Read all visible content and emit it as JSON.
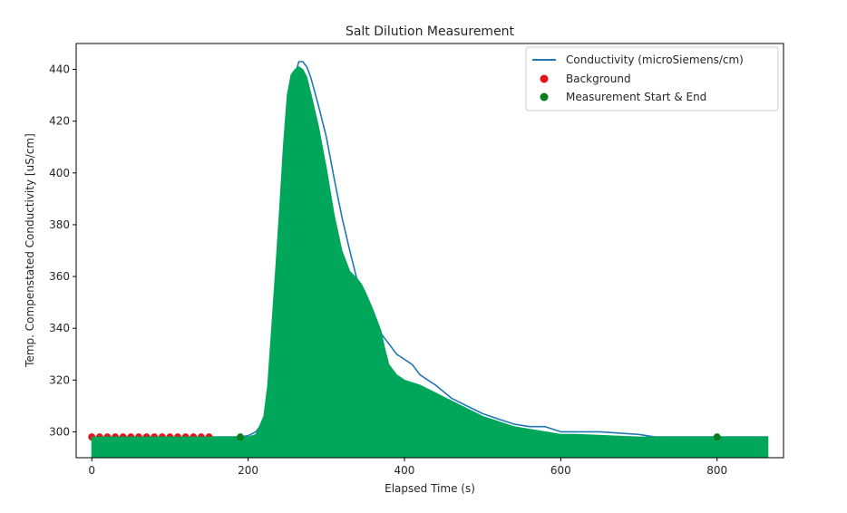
{
  "chart_data": {
    "type": "line",
    "title": "Salt Dilution Measurement",
    "xlabel": "Elapsed Time (s)",
    "ylabel": "Temp. Compenstated Conductivity [uS/cm]",
    "xlim": [
      -20,
      885
    ],
    "ylim": [
      290,
      450
    ],
    "xticks": [
      0,
      200,
      400,
      600,
      800
    ],
    "yticks": [
      300,
      320,
      340,
      360,
      380,
      400,
      420,
      440
    ],
    "legend_position": "top-right",
    "colors": {
      "conductivity": "#1f77b4",
      "background": "#e6131c",
      "measurement": "#0a7d1c",
      "fill": "#00a65a"
    },
    "legend": [
      {
        "label": "Conductivity (microSiemens/cm)",
        "kind": "line",
        "color_key": "conductivity"
      },
      {
        "label": "Background",
        "kind": "dot",
        "color_key": "background"
      },
      {
        "label": "Measurement Start & End",
        "kind": "dot",
        "color_key": "measurement"
      }
    ],
    "series": [
      {
        "name": "Conductivity (microSiemens/cm)",
        "kind": "line",
        "x": [
          0,
          150,
          190,
          200,
          210,
          220,
          230,
          240,
          250,
          255,
          260,
          265,
          270,
          275,
          280,
          290,
          300,
          310,
          320,
          330,
          340,
          350,
          360,
          370,
          380,
          390,
          400,
          410,
          420,
          430,
          440,
          460,
          480,
          500,
          520,
          540,
          560,
          580,
          600,
          620,
          650,
          700,
          720,
          760,
          800,
          865
        ],
        "y": [
          298,
          298,
          298,
          298.5,
          300,
          304,
          315,
          345,
          390,
          420,
          438,
          443,
          443,
          441,
          437,
          426,
          414,
          398,
          383,
          370,
          358,
          349,
          343,
          338,
          334,
          330,
          328,
          326,
          322,
          320,
          318,
          313,
          310,
          307,
          305,
          303,
          302,
          302,
          300,
          300,
          300,
          299,
          298,
          298,
          298,
          298
        ]
      },
      {
        "name": "Background",
        "kind": "dots",
        "x": [
          0,
          10,
          20,
          30,
          40,
          50,
          60,
          70,
          80,
          90,
          100,
          110,
          120,
          130,
          140,
          150
        ],
        "y": [
          298,
          298,
          298,
          298,
          298,
          298,
          298,
          298,
          298,
          298,
          298,
          298,
          298,
          298,
          298,
          298
        ]
      },
      {
        "name": "Measurement Start & End",
        "kind": "dots",
        "x": [
          190,
          800
        ],
        "y": [
          298,
          298
        ]
      },
      {
        "name": "filled-area",
        "kind": "area",
        "baseline": 290,
        "x": [
          0,
          150,
          190,
          200,
          210,
          220,
          225,
          230,
          235,
          240,
          245,
          250,
          255,
          260,
          265,
          270,
          275,
          280,
          290,
          300,
          310,
          320,
          330,
          340,
          345,
          350,
          360,
          370,
          375,
          380,
          390,
          400,
          420,
          440,
          460,
          480,
          500,
          520,
          540,
          560,
          580,
          600,
          620,
          700,
          800,
          865
        ],
        "y": [
          298,
          298,
          298,
          298,
          299,
          306,
          318,
          340,
          362,
          385,
          410,
          430,
          438,
          440,
          441,
          440,
          437,
          431,
          418,
          402,
          384,
          370,
          362,
          359,
          357,
          354,
          347,
          339,
          332,
          326,
          322,
          320,
          318,
          315,
          312,
          309,
          306,
          304,
          302,
          301,
          300,
          299,
          299,
          298,
          298,
          298
        ]
      }
    ]
  }
}
